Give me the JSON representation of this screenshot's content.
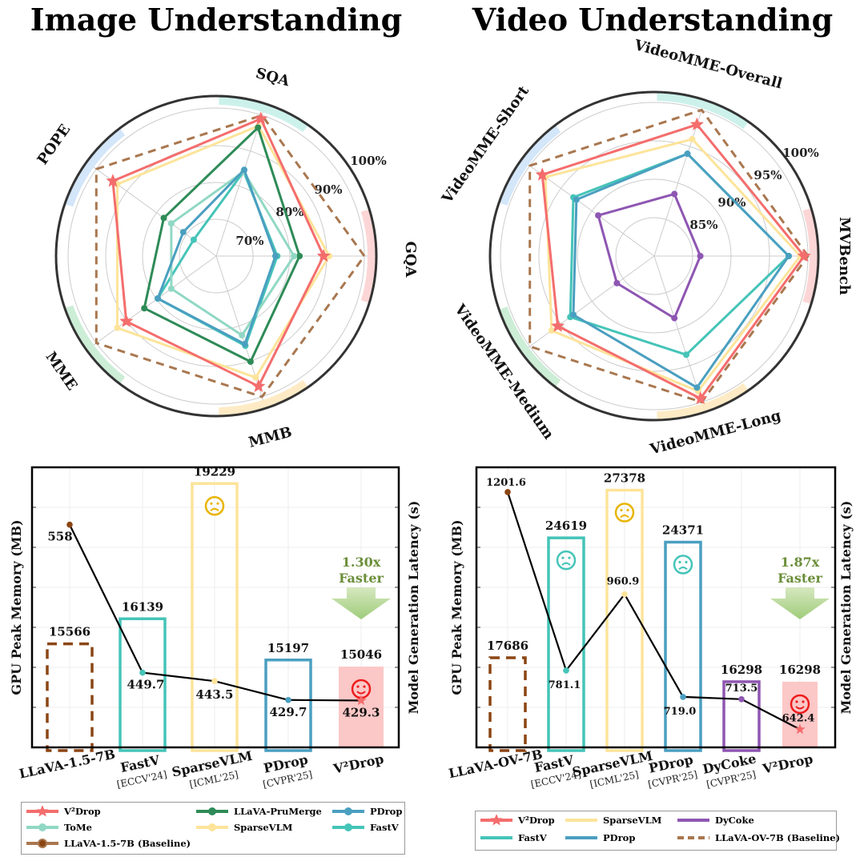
{
  "titles": {
    "image": "Image Understanding",
    "video": "Video Understanding"
  },
  "chart_data": [
    {
      "type": "radar",
      "name": "image-radar",
      "title": "Image Understanding",
      "axes": [
        "GQA",
        "SQA",
        "POPE",
        "MME",
        "MMB"
      ],
      "ring_labels": [
        "70%",
        "80%",
        "90%",
        "100%"
      ],
      "range": [
        60,
        100
      ],
      "series": [
        {
          "name": "LLaVA-1.5-7B (Baseline)",
          "color": "#a9774f",
          "style": "dashed",
          "values": [
            100,
            100,
            100,
            100,
            100
          ]
        },
        {
          "name": "SparseVLM",
          "color": "#fde49a",
          "style": "solid",
          "values": [
            90.5,
            97,
            93,
            93,
            94.5
          ]
        },
        {
          "name": "V²Drop",
          "color": "#f46d6d",
          "style": "star",
          "values": [
            89,
            99,
            94.5,
            90,
            97
          ]
        },
        {
          "name": "LLaVA-PruMerge",
          "color": "#2e8b57",
          "style": "solid",
          "values": [
            82.5,
            96.5,
            77.5,
            84,
            90
          ]
        },
        {
          "name": "FastV",
          "color": "#45c4b8",
          "style": "solid",
          "values": [
            76.5,
            84,
            67.5,
            79.5,
            85.5
          ]
        },
        {
          "name": "ToMe",
          "color": "#90d8c4",
          "style": "solid",
          "values": [
            81,
            84,
            75,
            75,
            82.5
          ]
        },
        {
          "name": "PDrop",
          "color": "#4a9fc0",
          "style": "solid",
          "values": [
            76,
            84.5,
            71,
            79.5,
            85
          ]
        }
      ]
    },
    {
      "type": "radar",
      "name": "video-radar",
      "title": "Video Understanding",
      "axes": [
        "MVBench",
        "VideoMME-Overall",
        "VideoMME-Short",
        "VideoMME-Medium",
        "VideoMME-Long"
      ],
      "ring_labels": [
        "85%",
        "90%",
        "95%",
        "100%"
      ],
      "range": [
        80,
        100
      ],
      "series": [
        {
          "name": "LLaVA-OV-7B (Baseline)",
          "color": "#a9774f",
          "style": "dashed",
          "values": [
            100,
            100,
            100,
            100,
            100
          ]
        },
        {
          "name": "SparseVLM",
          "color": "#fde49a",
          "style": "solid",
          "values": [
            99,
            96,
            97.5,
            96.5,
            98.5
          ]
        },
        {
          "name": "V²Drop",
          "color": "#f46d6d",
          "style": "star",
          "values": [
            99.5,
            98,
            98,
            95.5,
            99.5
          ]
        },
        {
          "name": "FastV",
          "color": "#45c4b8",
          "style": "solid",
          "values": [
            97.5,
            94,
            93,
            93.5,
            93.5
          ]
        },
        {
          "name": "PDrop",
          "color": "#4a9fc0",
          "style": "solid",
          "values": [
            97.5,
            94,
            92.5,
            93,
            98
          ]
        },
        {
          "name": "DyCoke",
          "color": "#8e56b2",
          "style": "solid",
          "values": [
            86,
            88.5,
            89,
            86,
            88.5
          ]
        }
      ]
    },
    {
      "type": "bar+line",
      "name": "image-bars",
      "ylabel_left": "GPU Peak Memory (MB)",
      "ylabel_right": "Model Generation Latency (s)",
      "categories": [
        {
          "label": "LLaVA-1.5-7B",
          "sub": ""
        },
        {
          "label": "FastV",
          "sub": "[ECCV'24]"
        },
        {
          "label": "SparseVLM",
          "sub": "[ICML'25]"
        },
        {
          "label": "PDrop",
          "sub": "[CVPR'25]"
        },
        {
          "label": "V²Drop",
          "sub": ""
        }
      ],
      "memory": [
        15566,
        16139,
        19229,
        15197,
        15046
      ],
      "memory_labels": [
        "15566",
        "16139",
        "19229",
        "15197",
        "15046"
      ],
      "latency": [
        558,
        449.7,
        443.5,
        429.7,
        429.3
      ],
      "latency_labels": [
        "558",
        "449.7",
        "443.5",
        "429.7",
        "429.3"
      ],
      "bar_colors": [
        "#8b4513",
        "#45c4b8",
        "#fde49a",
        "#4a9fc0",
        "#f46d6d"
      ],
      "bar_styles": [
        "dashed",
        "outline",
        "outline",
        "outline",
        "filled"
      ],
      "faces": [
        "",
        "",
        "sad",
        "",
        "happy"
      ],
      "face_colors": [
        "",
        "",
        "#e8b400",
        "",
        "#ee1c1c"
      ],
      "mem_range": [
        13200,
        19600
      ],
      "lat_range": [
        395,
        600
      ],
      "speedup": "1.30x",
      "speedup_word": "Faster"
    },
    {
      "type": "bar+line",
      "name": "video-bars",
      "ylabel_left": "GPU Peak Memory (MB)",
      "ylabel_right": "Model Generation Latency (s)",
      "categories": [
        {
          "label": "LLaVA-OV-7B",
          "sub": ""
        },
        {
          "label": "FastV",
          "sub": "[ECCV'24]"
        },
        {
          "label": "SparseVLM",
          "sub": "[ICML'25]"
        },
        {
          "label": "PDrop",
          "sub": "[CVPR'25]"
        },
        {
          "label": "DyCoke",
          "sub": "[CVPR'25]"
        },
        {
          "label": "V²Drop",
          "sub": ""
        }
      ],
      "memory": [
        17686,
        24619,
        27378,
        24371,
        16298,
        16298
      ],
      "memory_labels": [
        "17686",
        "24619",
        "27378",
        "24371",
        "16298",
        "16298"
      ],
      "latency": [
        1201.6,
        781.1,
        960.9,
        719.0,
        713.5,
        642.4
      ],
      "latency_labels": [
        "1201.6",
        "781.1",
        "960.9",
        "719.0",
        "713.5",
        "642.4"
      ],
      "bar_colors": [
        "#8b4513",
        "#45c4b8",
        "#fde49a",
        "#4a9fc0",
        "#8e56b2",
        "#f46d6d"
      ],
      "bar_styles": [
        "dashed",
        "outline",
        "outline",
        "outline",
        "outline",
        "filled"
      ],
      "faces": [
        "",
        "sad",
        "sad",
        "sad",
        "",
        "happy"
      ],
      "face_colors": [
        "",
        "#45c4b8",
        "#e8b400",
        "#45c4b8",
        "",
        "#ee1c1c"
      ],
      "mem_range": [
        12500,
        28700
      ],
      "lat_range": [
        600,
        1260
      ],
      "speedup": "1.87x",
      "speedup_word": "Faster"
    }
  ],
  "legend_left": [
    {
      "name": "V²Drop",
      "color": "#f46d6d",
      "marker": "star"
    },
    {
      "name": "LLaVA-PruMerge",
      "color": "#2e8b57",
      "marker": "dot"
    },
    {
      "name": "PDrop",
      "color": "#4a9fc0",
      "marker": "dot"
    },
    {
      "name": "ToMe",
      "color": "#90d8c4",
      "marker": "dot"
    },
    {
      "name": "SparseVLM",
      "color": "#fde49a",
      "marker": "dot"
    },
    {
      "name": "FastV",
      "color": "#45c4b8",
      "marker": "dot"
    },
    {
      "name": "LLaVA-1.5-7B (Baseline)",
      "color": "#a9774f",
      "marker": "dot-dark"
    }
  ],
  "legend_right": [
    {
      "name": "V²Drop",
      "color": "#f46d6d",
      "marker": "star"
    },
    {
      "name": "SparseVLM",
      "color": "#fde49a",
      "marker": "line"
    },
    {
      "name": "DyCoke",
      "color": "#8e56b2",
      "marker": "line"
    },
    {
      "name": "FastV",
      "color": "#45c4b8",
      "marker": "line"
    },
    {
      "name": "PDrop",
      "color": "#4a9fc0",
      "marker": "line"
    },
    {
      "name": "LLaVA-OV-7B (Baseline)",
      "color": "#a9774f",
      "marker": "dashed"
    }
  ]
}
